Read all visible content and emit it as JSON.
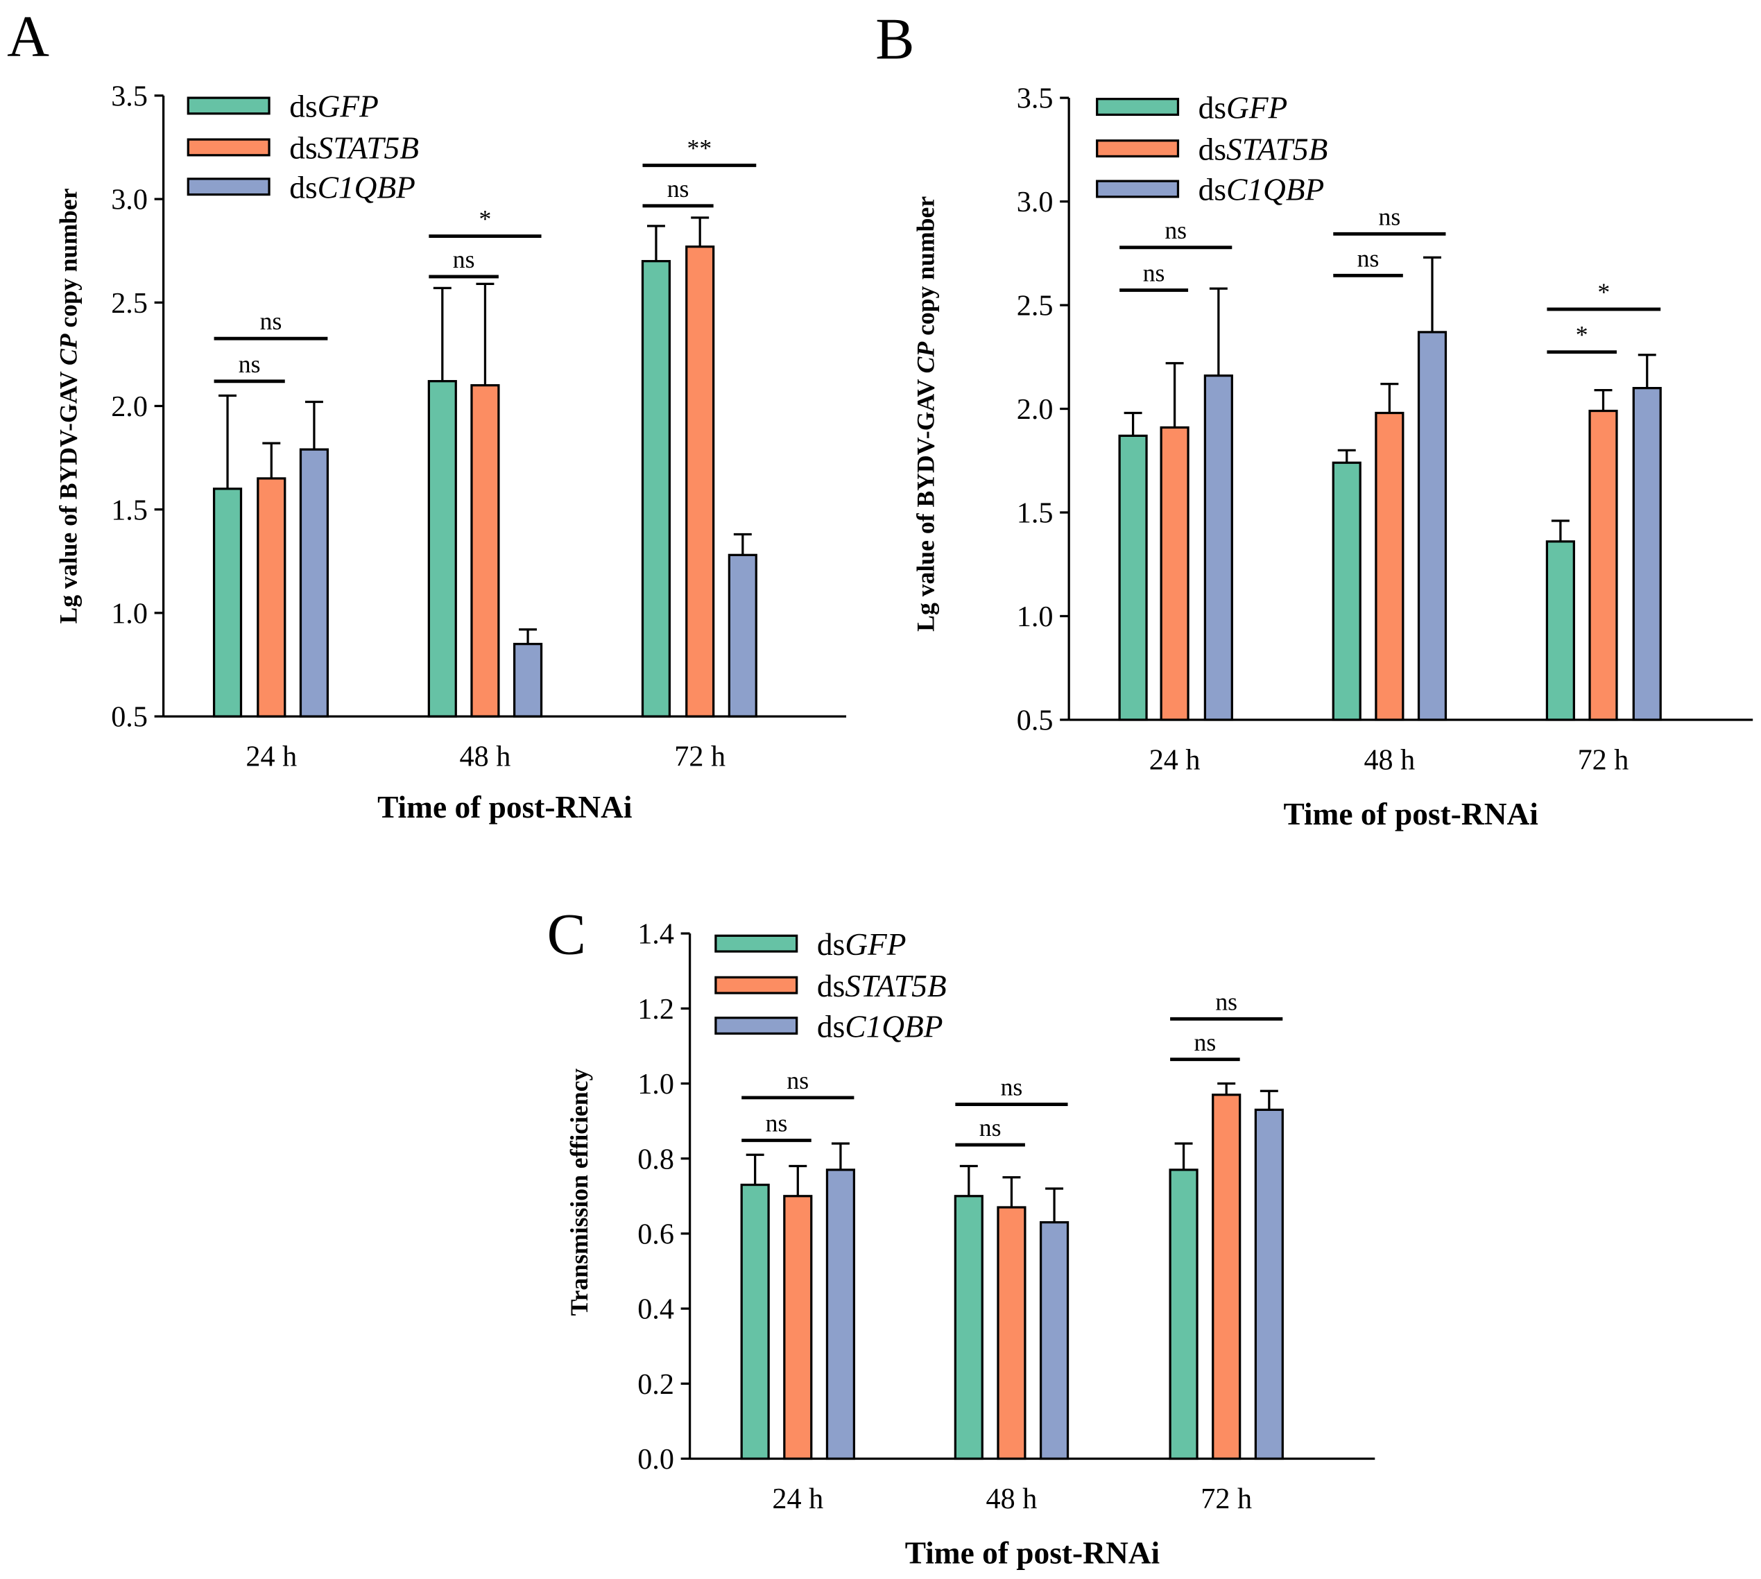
{
  "colors": {
    "dsGFP": "#66C2A5",
    "dsSTAT5B": "#FC8D62",
    "dsC1QBP": "#8DA0CB",
    "axis": "#000000"
  },
  "legend": [
    {
      "prefix": "ds",
      "gene": "GFP"
    },
    {
      "prefix": "ds",
      "gene": "STAT5B"
    },
    {
      "prefix": "ds",
      "gene": "C1QBP"
    }
  ],
  "chart_data": [
    {
      "panel": "A",
      "type": "bar",
      "categories": [
        "24 h",
        "48 h",
        "72 h"
      ],
      "xlabel": "Time of post-RNAi",
      "ylabel": {
        "before": "Lg value of  BYDV-GAV ",
        "italic": "CP",
        "after": " copy number"
      },
      "ylim": [
        0.5,
        3.5
      ],
      "yticks": [
        "0.5",
        "1.0",
        "1.5",
        "2.0",
        "2.5",
        "3.0",
        "3.5"
      ],
      "series": [
        {
          "name": "dsGFP",
          "values": [
            1.6,
            2.12,
            2.7
          ],
          "errors": [
            0.45,
            0.45,
            0.17
          ]
        },
        {
          "name": "dsSTAT5B",
          "values": [
            1.65,
            2.1,
            2.77
          ],
          "errors": [
            0.17,
            0.49,
            0.14
          ]
        },
        {
          "name": "dsC1QBP",
          "values": [
            1.79,
            0.85,
            1.28
          ],
          "errors": [
            0.23,
            0.07,
            0.1
          ]
        }
      ],
      "significance": [
        {
          "short": "ns",
          "long": "ns"
        },
        {
          "short": "ns",
          "long": "*"
        },
        {
          "short": "ns",
          "long": "**"
        }
      ]
    },
    {
      "panel": "B",
      "type": "bar",
      "categories": [
        "24 h",
        "48 h",
        "72 h"
      ],
      "xlabel": "Time of post-RNAi",
      "ylabel": {
        "before": "Lg value of  BYDV-GAV ",
        "italic": "CP",
        "after": " copy number"
      },
      "ylim": [
        0.5,
        3.5
      ],
      "yticks": [
        "0.5",
        "1.0",
        "1.5",
        "2.0",
        "2.5",
        "3.0",
        "3.5"
      ],
      "series": [
        {
          "name": "dsGFP",
          "values": [
            1.87,
            1.74,
            1.36
          ],
          "errors": [
            0.11,
            0.06,
            0.1
          ]
        },
        {
          "name": "dsSTAT5B",
          "values": [
            1.91,
            1.98,
            1.99
          ],
          "errors": [
            0.31,
            0.14,
            0.1
          ]
        },
        {
          "name": "dsC1QBP",
          "values": [
            2.16,
            2.37,
            2.1
          ],
          "errors": [
            0.42,
            0.36,
            0.16
          ]
        }
      ],
      "significance": [
        {
          "short": "ns",
          "long": "ns"
        },
        {
          "short": "ns",
          "long": "ns"
        },
        {
          "short": "*",
          "long": "*"
        }
      ]
    },
    {
      "panel": "C",
      "type": "bar",
      "categories": [
        "24 h",
        "48 h",
        "72 h"
      ],
      "xlabel": "Time of post-RNAi",
      "ylabel": {
        "before": "Transmission efficiency",
        "italic": "",
        "after": ""
      },
      "ylim": [
        0,
        1.4
      ],
      "yticks": [
        "0.0",
        "0.2",
        "0.4",
        "0.6",
        "0.8",
        "1.0",
        "1.2",
        "1.4"
      ],
      "series": [
        {
          "name": "dsGFP",
          "values": [
            0.73,
            0.7,
            0.77
          ],
          "errors": [
            0.08,
            0.08,
            0.07
          ]
        },
        {
          "name": "dsSTAT5B",
          "values": [
            0.7,
            0.67,
            0.97
          ],
          "errors": [
            0.08,
            0.08,
            0.03
          ]
        },
        {
          "name": "dsC1QBP",
          "values": [
            0.77,
            0.63,
            0.93
          ],
          "errors": [
            0.07,
            0.09,
            0.05
          ]
        }
      ],
      "significance": [
        {
          "short": "ns",
          "long": "ns"
        },
        {
          "short": "ns",
          "long": "ns"
        },
        {
          "short": "ns",
          "long": "ns"
        }
      ]
    }
  ]
}
